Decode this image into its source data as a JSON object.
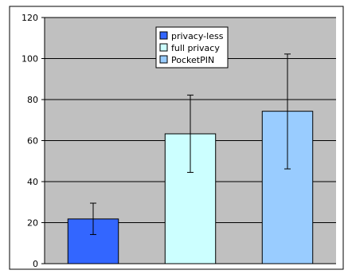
{
  "chart_data": {
    "type": "bar",
    "categories": [
      "privacy-less",
      "full privacy",
      "PocketPIN"
    ],
    "series": [
      {
        "name": "privacy-less",
        "value": 21.8,
        "error_low": 14.2,
        "error_high": 29.5,
        "color": "#3366ff"
      },
      {
        "name": "full privacy",
        "value": 63.3,
        "error_low": 44.5,
        "error_high": 82.2,
        "color": "#ccffff"
      },
      {
        "name": "PocketPIN",
        "value": 74.3,
        "error_low": 46.2,
        "error_high": 102.2,
        "color": "#99ccff"
      }
    ],
    "yticks": [
      0,
      20,
      40,
      60,
      80,
      100,
      120
    ],
    "ylim": [
      0,
      120
    ],
    "title": "",
    "xlabel": "",
    "ylabel": "",
    "grid": true,
    "legend_position": "top-center",
    "plot_background": "#c0c0c0"
  }
}
